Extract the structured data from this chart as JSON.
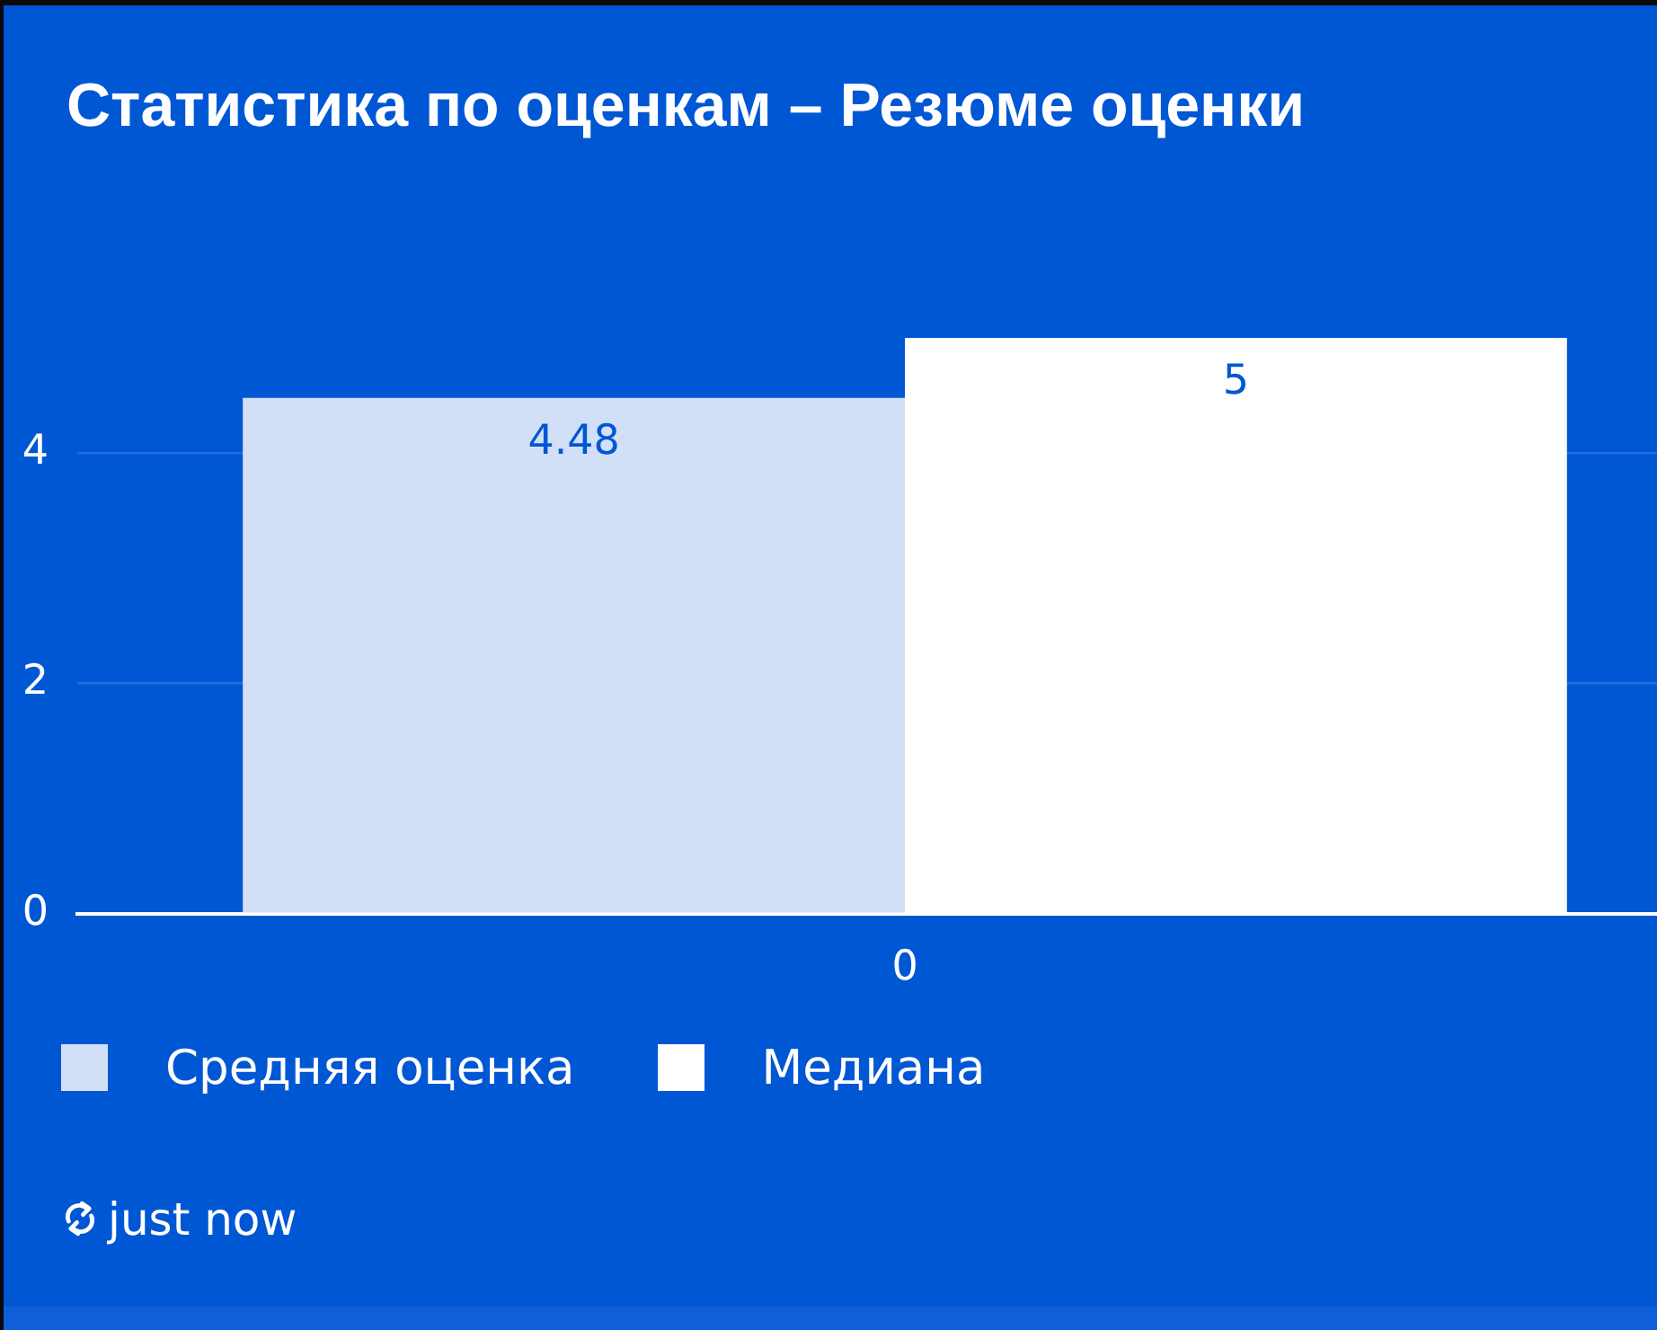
{
  "chart_data": {
    "type": "bar",
    "title": "Статистика по оценкам – Резюме оценки",
    "categories": [
      "0"
    ],
    "series": [
      {
        "name": "Средняя оценка",
        "color": "#d1e0f7",
        "values": [
          4.48
        ]
      },
      {
        "name": "Медиана",
        "color": "#ffffff",
        "values": [
          5
        ]
      }
    ],
    "ylim": [
      0,
      5
    ],
    "yticks": [
      0,
      2,
      4
    ],
    "grid": "y",
    "legend": "bottom left",
    "data_labels": true,
    "annotations": [
      "just now"
    ]
  }
}
